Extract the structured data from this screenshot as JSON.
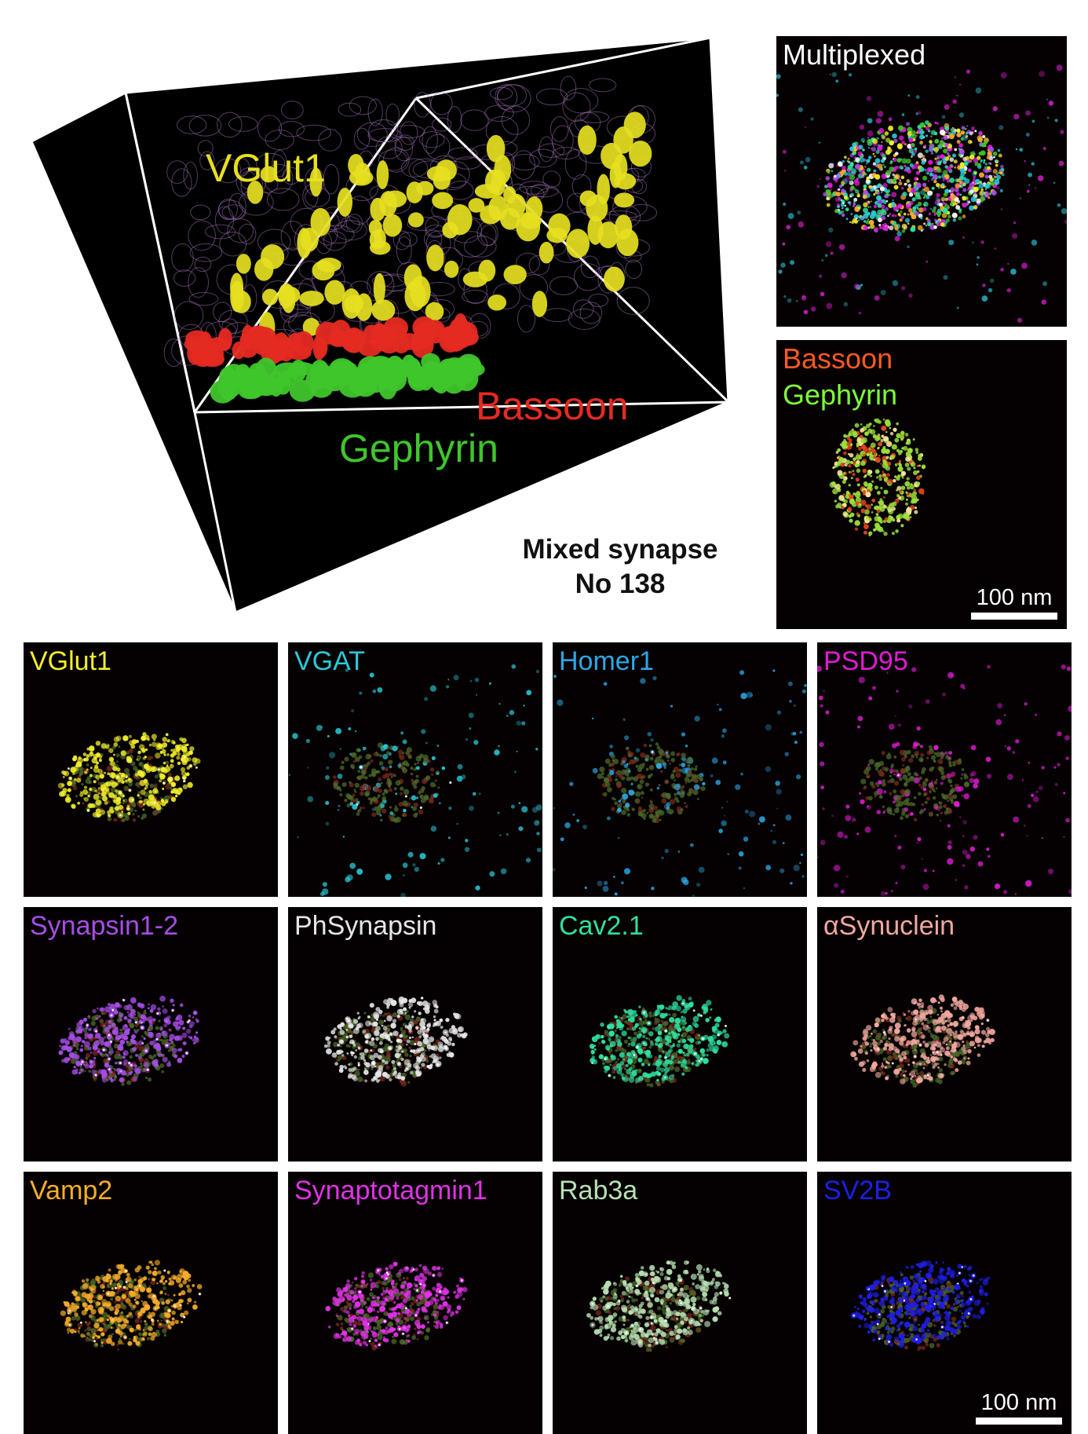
{
  "render3d": {
    "label_vglut1": "VGlut1",
    "label_bassoon": "Bassoon",
    "label_gephyrin": "Gephyrin",
    "colors": {
      "vglut1": "#e6e021",
      "bassoon": "#e42a22",
      "gephyrin": "#3fc62b"
    }
  },
  "caption": {
    "line1": "Mixed synapse",
    "line2": "No 138"
  },
  "top_panels": {
    "multiplexed": {
      "label": "Multiplexed",
      "color": "#ffffff"
    },
    "bassoon_gephyrin": {
      "label1": "Bassoon",
      "color1": "#ff5a1f",
      "label2": "Gephyrin",
      "color2": "#7dff3a",
      "scale": "100 nm"
    }
  },
  "grid_panels": [
    {
      "label": "VGlut1",
      "color": "#f2ee2c"
    },
    {
      "label": "VGAT",
      "color": "#29c9d9"
    },
    {
      "label": "Homer1",
      "color": "#2ba8e6"
    },
    {
      "label": "PSD95",
      "color": "#e21ad6"
    },
    {
      "label": "Synapsin1-2",
      "color": "#a64de6"
    },
    {
      "label": "PhSynapsin",
      "color": "#e6e6e6"
    },
    {
      "label": "Cav2.1",
      "color": "#2ee0a0"
    },
    {
      "label": "αSynuclein",
      "color": "#f2a8a0"
    },
    {
      "label": "Vamp2",
      "color": "#f7ad2a"
    },
    {
      "label": "Synaptotagmin1",
      "color": "#e032e6"
    },
    {
      "label": "Rab3a",
      "color": "#b8e0b4"
    },
    {
      "label": "SV2B",
      "color": "#1e1ee6",
      "scale": "100 nm"
    }
  ]
}
